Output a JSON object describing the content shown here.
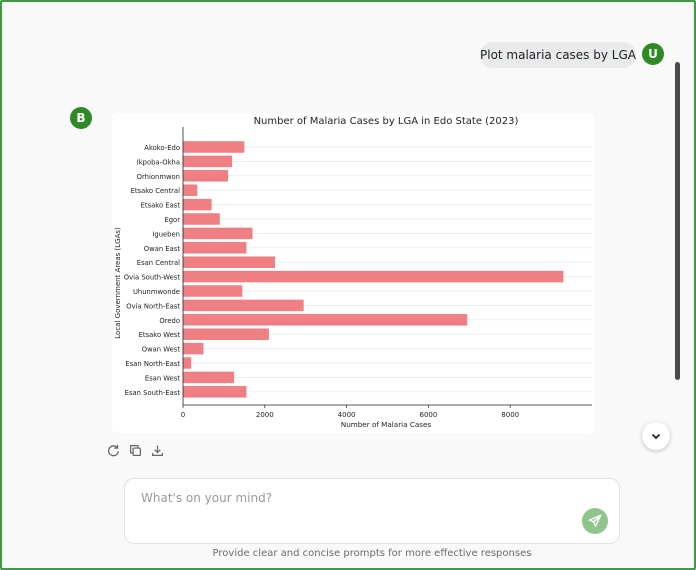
{
  "chat": {
    "user_message": "Plot malaria cases by LGA",
    "user_avatar_letter": "U",
    "bot_avatar_letter": "B"
  },
  "input": {
    "placeholder": "What's on your mind?"
  },
  "footer": {
    "hint": "Provide clear and concise prompts for more effective responses"
  },
  "colors": {
    "brand_green": "#2f8a25",
    "bar_color": "#ef7f82"
  },
  "icons": {
    "regenerate": "refresh-icon",
    "copy": "copy-icon",
    "download": "download-icon",
    "scroll_down": "chevron-down-icon",
    "send": "send-icon"
  },
  "chart_data": {
    "type": "bar",
    "orientation": "horizontal",
    "title": "Number of Malaria Cases by LGA in Edo State (2023)",
    "xlabel": "Number of Malaria Cases",
    "ylabel": "Local Government Areas (LGAs)",
    "xlim": [
      0,
      10000
    ],
    "xticks": [
      0,
      2000,
      4000,
      6000,
      8000
    ],
    "grid": true,
    "categories": [
      "Akoko-Edo",
      "Ikpoba-Okha",
      "Orhionmwon",
      "Etsako Central",
      "Etsako East",
      "Egor",
      "Igueben",
      "Owan East",
      "Esan Central",
      "Ovia South-West",
      "Uhunmwonde",
      "Ovia North-East",
      "Oredo",
      "Etsako West",
      "Owan West",
      "Esan North-East",
      "Esan West",
      "Esan South-East"
    ],
    "values": [
      1500,
      1200,
      1100,
      350,
      700,
      900,
      1700,
      1550,
      2250,
      9300,
      1450,
      2950,
      6950,
      2100,
      500,
      200,
      1250,
      1550
    ]
  }
}
